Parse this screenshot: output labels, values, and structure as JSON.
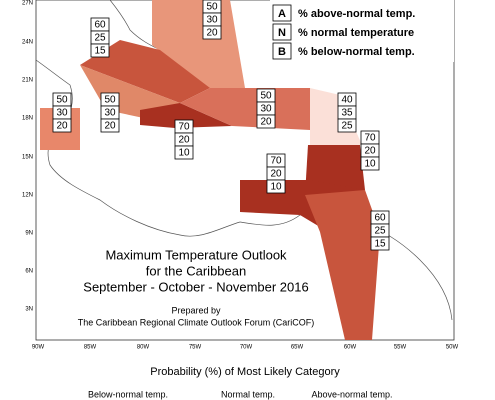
{
  "map": {
    "legend": [
      {
        "key": "A",
        "text": "% above-normal temp."
      },
      {
        "key": "N",
        "text": "% normal temperature"
      },
      {
        "key": "B",
        "text": "% below-normal temp."
      }
    ],
    "lat_labels": [
      "27N",
      "24N",
      "21N",
      "18N",
      "15N",
      "12N",
      "9N",
      "6N",
      "3N"
    ],
    "lon_labels": [
      "90W",
      "85W",
      "80W",
      "75W",
      "70W",
      "65W",
      "60W",
      "55W",
      "50W"
    ],
    "regions": [
      {
        "above": 50,
        "normal": 30,
        "below": 20
      },
      {
        "above": 60,
        "normal": 25,
        "below": 15
      },
      {
        "above": 50,
        "normal": 30,
        "below": 20
      },
      {
        "above": 50,
        "normal": 30,
        "below": 20
      },
      {
        "above": 70,
        "normal": 20,
        "below": 10
      },
      {
        "above": 50,
        "normal": 30,
        "below": 20
      },
      {
        "above": 40,
        "normal": 35,
        "below": 25
      },
      {
        "above": 70,
        "normal": 20,
        "below": 10
      },
      {
        "above": 70,
        "normal": 20,
        "below": 10
      },
      {
        "above": 60,
        "normal": 25,
        "below": 15
      }
    ],
    "title": [
      "Maximum Temperature Outlook",
      "for the Caribbean",
      "September - October - November 2016"
    ],
    "credit": [
      "Prepared by",
      "The Caribbean Regional Climate Outlook Forum (CariCOF)"
    ],
    "colorbar": {
      "title": "Probability (%) of Most Likely Category",
      "labels": [
        "Below-normal temp.",
        "Normal temp.",
        "Above-normal temp."
      ]
    }
  }
}
